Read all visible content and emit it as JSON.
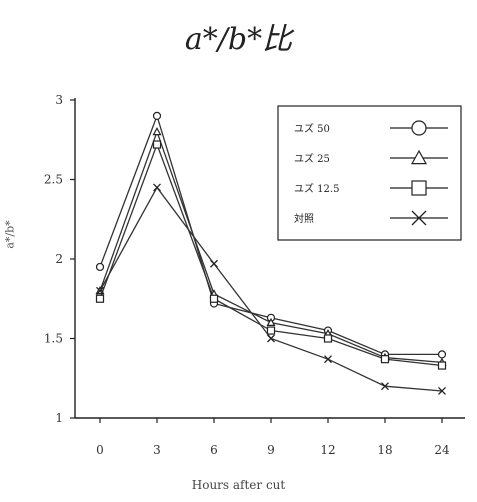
{
  "chart_data": {
    "type": "line",
    "title": "a*/b*比",
    "xlabel": "Hours after cut",
    "ylabel": "a*/b*",
    "categories": [
      "0",
      "3",
      "6",
      "9",
      "12",
      "18",
      "24"
    ],
    "y_ticks": [
      "1",
      "1.5",
      "2",
      "2.5",
      "3"
    ],
    "ylim": [
      1,
      3
    ],
    "grid": false,
    "legend_position": "top-right",
    "series": [
      {
        "name": "ユズ 50",
        "marker": "circle",
        "values": [
          1.95,
          2.9,
          1.72,
          1.63,
          1.55,
          1.4,
          1.4
        ]
      },
      {
        "name": "ユズ 25",
        "marker": "triangle",
        "values": [
          1.8,
          2.8,
          1.78,
          1.6,
          1.53,
          1.38,
          1.35
        ]
      },
      {
        "name": "ユズ 12.5",
        "marker": "square",
        "values": [
          1.75,
          2.72,
          1.75,
          1.55,
          1.5,
          1.37,
          1.33
        ]
      },
      {
        "name": "対照",
        "marker": "x",
        "values": [
          1.8,
          2.45,
          1.97,
          1.5,
          1.37,
          1.2,
          1.17
        ]
      }
    ]
  }
}
